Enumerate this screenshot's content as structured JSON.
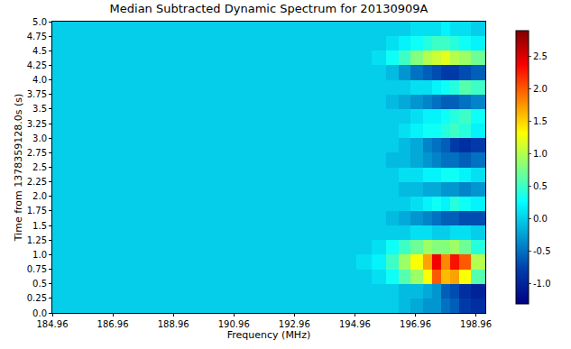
{
  "chart_data": {
    "type": "heatmap",
    "title": "Median Subtracted Dynamic Spectrum for 20130909A",
    "x_label": "Frequency (MHz)",
    "y_label": "Time from 1378359128.0s (s)",
    "color": "Jet",
    "xlim": [
      184.96,
      199.27
    ],
    "xticks": [
      184.96,
      186.96,
      188.96,
      190.96,
      192.96,
      194.96,
      196.96,
      198.96
    ],
    "ylim": [
      0,
      5
    ],
    "yticks": [
      {
        "value": 0,
        "label": "0.0"
      },
      0.25,
      0.5,
      0.75,
      {
        "value": 1,
        "label": "1.0"
      },
      1.25,
      1.5,
      1.75,
      {
        "value": 2,
        "label": "2.0"
      },
      2.25,
      2.5,
      2.75,
      {
        "value": 3,
        "label": "3.0"
      },
      3.25,
      3.5,
      3.75,
      {
        "value": 4,
        "label": "4.0"
      },
      4.25,
      4.5,
      4.75,
      {
        "value": 5,
        "label": "5.0"
      }
    ],
    "zlim": [
      -1.31,
      2.89
    ],
    "zticks": [
      {
        "value": -1,
        "label": "-1.0"
      },
      -0.5,
      {
        "value": 0,
        "label": "0.0"
      },
      0.5,
      {
        "value": 1,
        "label": "1.0"
      },
      1.5,
      {
        "value": 2,
        "label": "2.0"
      },
      2.5
    ],
    "x_edges": [
      184.96,
      195.0,
      195.5,
      196.0,
      196.4,
      196.8,
      197.2,
      197.5,
      197.8,
      198.1,
      198.4,
      198.8,
      199.27
    ],
    "y_edges": [
      0,
      0.25,
      0.5,
      0.75,
      1,
      1.25,
      1.5,
      1.75,
      2,
      2.25,
      2.5,
      2.75,
      3,
      3.25,
      3.5,
      3.75,
      4,
      4.25,
      4.5,
      4.75,
      5
    ],
    "cells": [
      [
        0,
        0,
        0,
        0,
        -0.1,
        -0.2,
        -0.3,
        -0.3,
        -0.5,
        -0.6,
        -0.8,
        -0.9
      ],
      [
        0,
        0,
        0,
        0,
        -0.1,
        -0.1,
        -0.2,
        -0.3,
        -0.6,
        -0.7,
        -0.9,
        -1.0
      ],
      [
        0,
        0,
        0.1,
        0.3,
        0.6,
        0.9,
        1.3,
        2.0,
        1.6,
        1.7,
        1.3,
        0.6
      ],
      [
        0,
        0.1,
        0.2,
        0.5,
        0.9,
        1.3,
        1.7,
        2.4,
        1.8,
        2.3,
        2.0,
        1.0
      ],
      [
        0,
        0,
        0.1,
        0.3,
        0.5,
        0.7,
        0.9,
        0.8,
        0.8,
        0.9,
        0.7,
        0.4
      ],
      [
        0,
        0,
        0,
        0,
        0,
        0.1,
        0.1,
        0,
        0,
        0.1,
        0.1,
        0
      ],
      [
        0,
        0,
        0,
        -0.1,
        -0.2,
        -0.3,
        -0.4,
        -0.5,
        -0.6,
        -0.6,
        -0.7,
        -0.7
      ],
      [
        0,
        0,
        0,
        0,
        0,
        0.1,
        0.2,
        0.3,
        0.2,
        0.4,
        0.3,
        0.2
      ],
      [
        0,
        0,
        0,
        0,
        -0.1,
        -0.1,
        -0.2,
        -0.2,
        -0.3,
        -0.3,
        -0.4,
        -0.3
      ],
      [
        0,
        0,
        0,
        0,
        0.1,
        0.1,
        0.2,
        0.2,
        0.3,
        0.3,
        0.2,
        0.1
      ],
      [
        0,
        0,
        0,
        -0.1,
        -0.1,
        -0.2,
        -0.3,
        -0.4,
        -0.5,
        -0.5,
        -0.6,
        -0.5
      ],
      [
        0,
        0,
        0,
        0,
        -0.1,
        -0.2,
        -0.4,
        -0.5,
        -0.6,
        -0.8,
        -0.9,
        -0.8
      ],
      [
        0,
        0,
        0,
        0,
        0.1,
        0.2,
        0.3,
        0.3,
        0.4,
        0.5,
        0.4,
        0.2
      ],
      [
        0,
        0,
        0,
        0,
        0,
        0.1,
        0.2,
        0.2,
        0.3,
        0.4,
        0.5,
        0.3
      ],
      [
        0,
        0,
        0,
        -0.1,
        -0.2,
        -0.3,
        -0.4,
        -0.5,
        -0.6,
        -0.6,
        -0.5,
        -0.4
      ],
      [
        0,
        0,
        0,
        0,
        0,
        0.1,
        0.1,
        0.2,
        0.3,
        0.4,
        0.6,
        0.5
      ],
      [
        0,
        0,
        0,
        -0.1,
        -0.3,
        -0.5,
        -0.6,
        -0.7,
        -0.8,
        -0.8,
        -0.7,
        -0.6
      ],
      [
        0,
        0,
        0.1,
        0.3,
        0.5,
        0.8,
        1.0,
        1.1,
        1.2,
        1.0,
        0.9,
        0.7
      ],
      [
        0,
        0,
        0,
        0.1,
        0.2,
        0.3,
        0.4,
        0.5,
        0.5,
        0.4,
        0.3,
        0.2
      ],
      [
        0,
        0,
        0,
        0,
        0,
        0.1,
        0.1,
        0.1,
        0.2,
        0.1,
        0.1,
        0
      ]
    ]
  }
}
